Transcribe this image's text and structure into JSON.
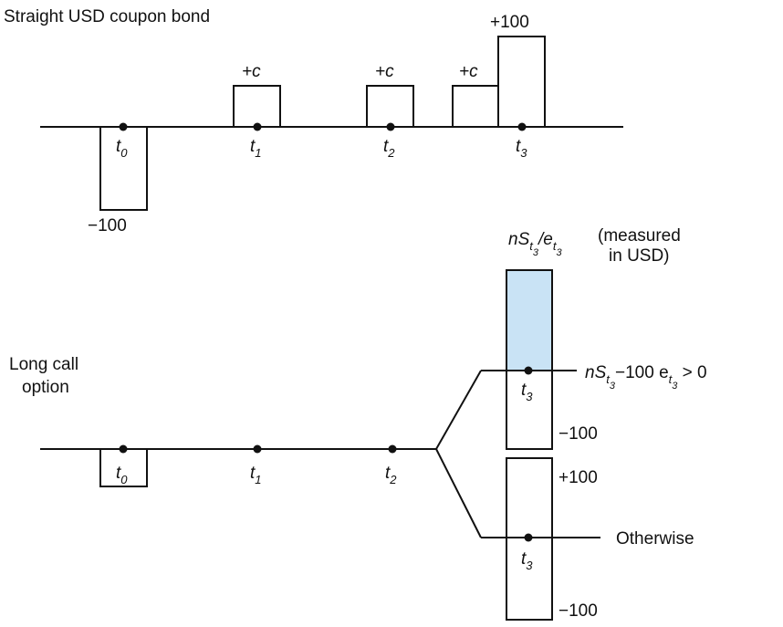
{
  "top": {
    "title": "Straight USD coupon bond",
    "outflow": "−100",
    "coupon": "+c",
    "principal": "+100",
    "times": [
      {
        "t": "t",
        "s": "0"
      },
      {
        "t": "t",
        "s": "1"
      },
      {
        "t": "t",
        "s": "2"
      },
      {
        "t": "t",
        "s": "3"
      }
    ]
  },
  "bottom": {
    "title_line1": "Long call",
    "title_line2": "option",
    "times": [
      {
        "t": "t",
        "s": "0"
      },
      {
        "t": "t",
        "s": "1"
      },
      {
        "t": "t",
        "s": "2"
      }
    ],
    "upper_branch": {
      "payoff": {
        "n": "nS",
        "sub": "t",
        "subsub": "3",
        "slash": "/e",
        "sub2": "t",
        "subsub2": "3"
      },
      "payoff_note_line1": "(measured",
      "payoff_note_line2": "in USD)",
      "t3": {
        "t": "t",
        "s": "3"
      },
      "minus100": "−100",
      "condition": {
        "a": "nS",
        "sub": "t",
        "subsub": "3",
        "b": "−100 e",
        "sub2": "t",
        "subsub2": "3",
        "c": " > 0"
      }
    },
    "lower_branch": {
      "plus100": "+100",
      "t3": {
        "t": "t",
        "s": "3"
      },
      "minus100": "−100",
      "condition": "Otherwise"
    }
  },
  "colors": {
    "fill_highlight": "#c9e3f5",
    "line": "#111111"
  }
}
